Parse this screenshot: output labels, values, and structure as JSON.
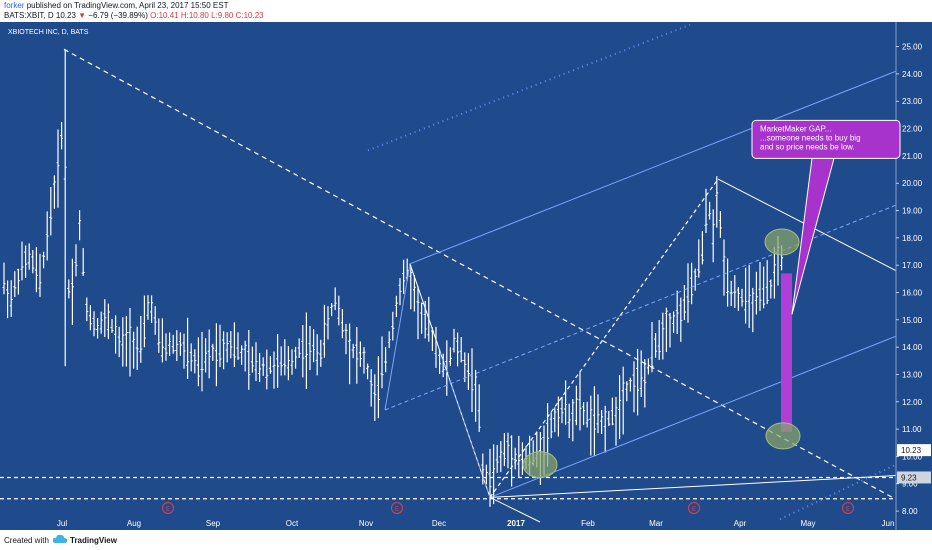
{
  "header": {
    "author": "forker",
    "publish_text": "published on TradingView.com, April 23, 2017 15:50 EST",
    "symbol": "BATS:XBIT, D",
    "last_price": "10.23",
    "change_arrow": "▼",
    "change": "−6.79 (−39.89%)",
    "ohlc_o": "O:10.41",
    "ohlc_h": "H:10.80",
    "ohlc_l": "L:9.80",
    "ohlc_c": "C:10.23"
  },
  "footer": {
    "created_with": "Created with",
    "brand": "TradingView",
    "logo_icon": "tradingview-cloud-icon"
  },
  "colors": {
    "background": "#1f4a8c",
    "candle": "#ffffff",
    "channel": "#79a6ff",
    "gap_bar": "#b03fd6",
    "callout_bg": "#a733cc",
    "highlight": "#8ba668",
    "event_badge": "#e0414a",
    "price_label_bg": "#ffffff"
  },
  "chart_data": {
    "type": "candlestick",
    "title": "XBIOTECH INC, D, BATS",
    "x_tick_labels": [
      "Jul",
      "Aug",
      "Sep",
      "Oct",
      "Nov",
      "Dec",
      "2017",
      "Feb",
      "Mar",
      "Apr",
      "May",
      "Jun"
    ],
    "y_tick_labels": [
      "8.00",
      "9.00",
      "10.00",
      "11.00",
      "12.00",
      "13.00",
      "14.00",
      "15.00",
      "16.00",
      "17.00",
      "18.00",
      "19.00",
      "20.00",
      "21.00",
      "22.00",
      "23.00",
      "24.00",
      "25.00"
    ],
    "ylim": [
      7.6,
      25.9
    ],
    "last_price_label": "10.23",
    "support_price_label": "9.23",
    "event_marker": "E",
    "event_dates": [
      "Aug 11",
      "Nov 10",
      "Mar 10",
      "May 10"
    ],
    "annotation": {
      "lines": [
        "MarketMaker GAP...",
        "...someone needs to buy big",
        "and so price needs be low."
      ]
    },
    "gap_range": [
      10.9,
      16.7
    ],
    "horizontal_levels": [
      9.23,
      8.45
    ],
    "highlighted_points": [
      {
        "x": "Jan 13",
        "y": 9.7
      },
      {
        "x": "Apr 17",
        "y": 17.85
      },
      {
        "x": "Apr 17",
        "y": 10.75
      }
    ],
    "ohlc_monthly_approx": [
      {
        "x": "Jun",
        "close": 15.5
      },
      {
        "x": "Jul",
        "close": 14.8
      },
      {
        "x": "Aug",
        "close": 14.3
      },
      {
        "x": "Sep",
        "close": 13.4
      },
      {
        "x": "Oct",
        "close": 13.9
      },
      {
        "x": "Nov",
        "close": 15.8
      },
      {
        "x": "Dec",
        "close": 10.0
      },
      {
        "x": "Jan",
        "close": 10.4
      },
      {
        "x": "Feb",
        "close": 11.5
      },
      {
        "x": "Mar",
        "close": 14.5
      },
      {
        "x": "Apr",
        "close": 10.23
      }
    ]
  }
}
